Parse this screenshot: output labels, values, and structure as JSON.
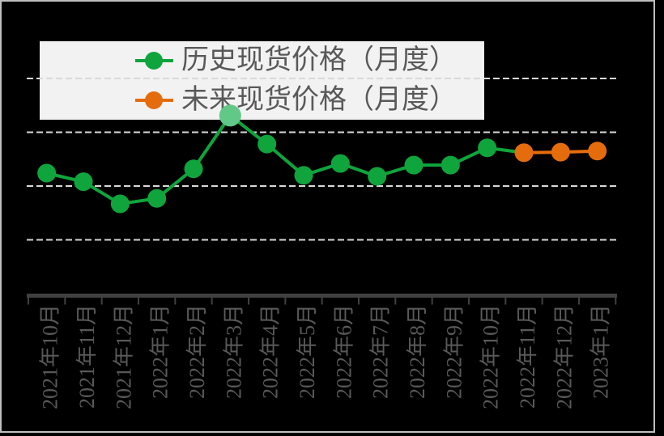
{
  "legend": {
    "items": [
      {
        "label": "历史现货价格（月度）",
        "color": "#10a43c"
      },
      {
        "label": "未来现货价格（月度）",
        "color": "#e56c0d"
      }
    ]
  },
  "chart_data": {
    "type": "line",
    "title": "",
    "x_categories": [
      "2021年10月",
      "2021年11月",
      "2021年12月",
      "2022年1月",
      "2022年2月",
      "2022年3月",
      "2022年4月",
      "2022年5月",
      "2022年6月",
      "2022年7月",
      "2022年8月",
      "2022年9月",
      "2022年10月",
      "2022年11月",
      "2022年12月",
      "2023年1月"
    ],
    "y_axis": {
      "visible": false,
      "note": "no numeric y-axis labels shown; values expressed in dashed-gridline units above the x-axis",
      "gridline_units": [
        1,
        2,
        3,
        4
      ],
      "grid_dashed": true
    },
    "series": [
      {
        "name": "历史现货价格（月度）",
        "color": "#10a43c",
        "marker": "circle",
        "start_index": 0,
        "values_grid_units": [
          2.24,
          2.08,
          1.67,
          1.77,
          2.32,
          3.31,
          2.78,
          2.2,
          2.42,
          2.18,
          2.39,
          2.39,
          2.71
        ],
        "highlight": {
          "category": "2022年3月",
          "index": 5,
          "color": "#62c887"
        }
      },
      {
        "name": "未来现货价格（月度）",
        "color": "#e56c0d",
        "marker": "circle",
        "start_index": 13,
        "values_grid_units": [
          2.62,
          2.63,
          2.65
        ],
        "connector_from_previous_series": "green"
      }
    ],
    "styles": {
      "background": "#000000",
      "frame_color": "#bfbfbf",
      "gridline_color": "#d9d9d9",
      "axis_color": "#404040",
      "label_color": "#595959",
      "legend_bg": "#f2f2f2",
      "legend_text": "#595959"
    },
    "legend_position": "top-inside"
  }
}
